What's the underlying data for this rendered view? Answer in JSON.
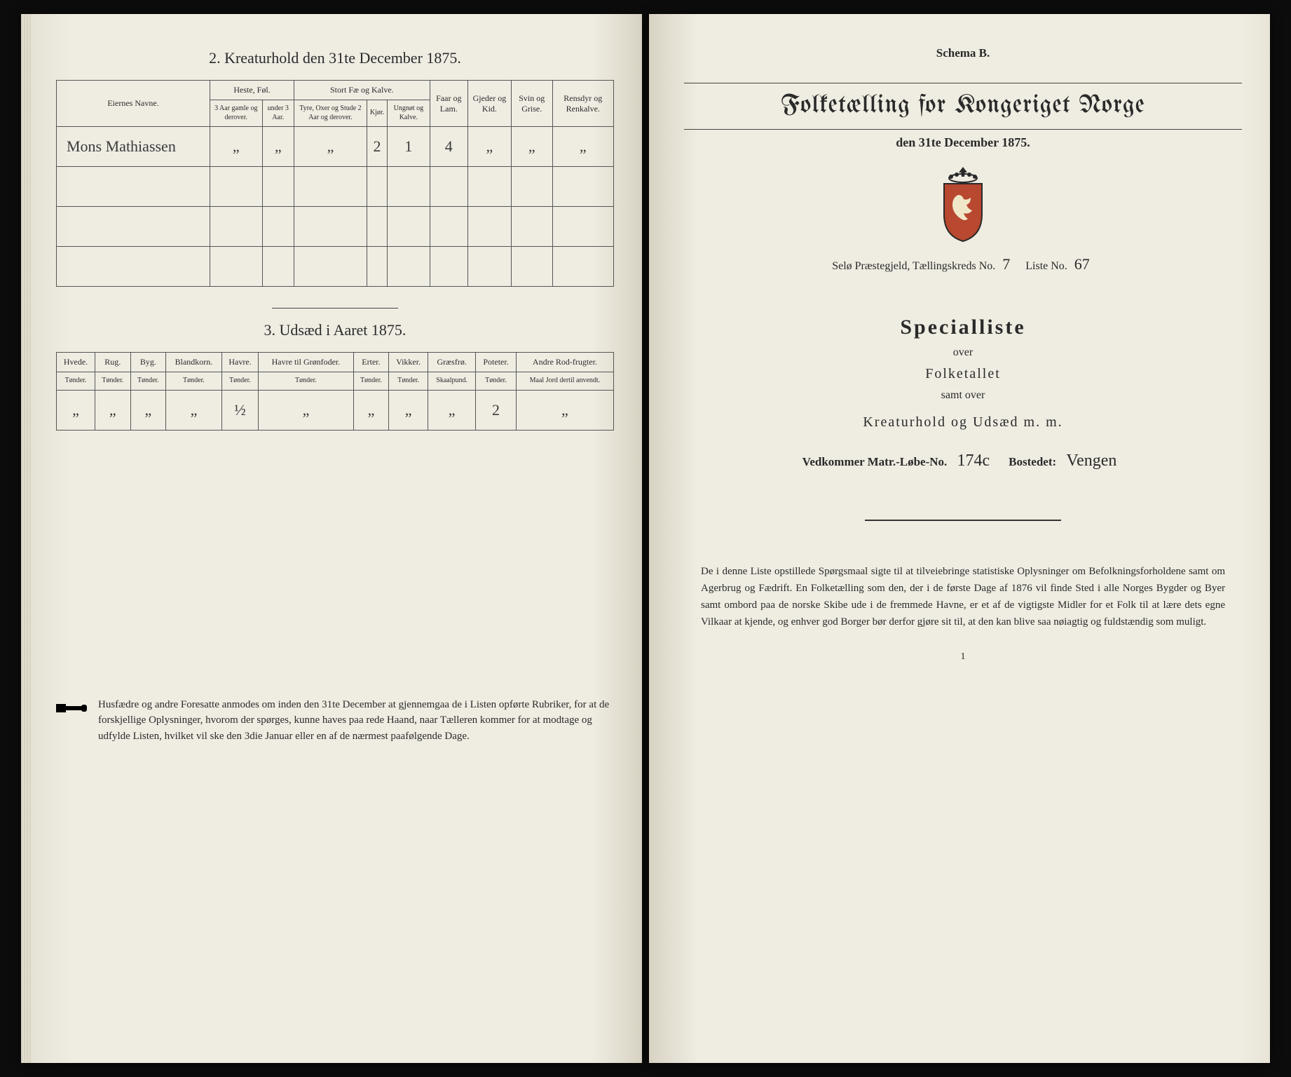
{
  "left": {
    "section2": {
      "title": "2.  Kreaturhold den 31te December 1875.",
      "col_owner": "Eiernes Navne.",
      "group_heste": "Heste, Føl.",
      "group_stort": "Stort Fæ og Kalve.",
      "col_faar": "Faar og Lam.",
      "col_gjeder": "Gjeder og Kid.",
      "col_svin": "Svin og Grise.",
      "col_rensdyr": "Rensdyr og Renkalve.",
      "sub_h1": "3 Aar gamle og derover.",
      "sub_h2": "under 3 Aar.",
      "sub_s1": "Tyre, Oxer og Stude 2 Aar og derover.",
      "sub_s2": "Kjør.",
      "sub_s3": "Ungnøt og Kalve.",
      "rows": [
        {
          "name": "Mons Mathiassen",
          "h1": "„",
          "h2": "„",
          "s1": "„",
          "s2": "2",
          "s3": "1",
          "faar": "4",
          "gjeder": "„",
          "svin": "„",
          "rens": "„"
        },
        {
          "name": "",
          "h1": "",
          "h2": "",
          "s1": "",
          "s2": "",
          "s3": "",
          "faar": "",
          "gjeder": "",
          "svin": "",
          "rens": ""
        },
        {
          "name": "",
          "h1": "",
          "h2": "",
          "s1": "",
          "s2": "",
          "s3": "",
          "faar": "",
          "gjeder": "",
          "svin": "",
          "rens": ""
        },
        {
          "name": "",
          "h1": "",
          "h2": "",
          "s1": "",
          "s2": "",
          "s3": "",
          "faar": "",
          "gjeder": "",
          "svin": "",
          "rens": ""
        }
      ]
    },
    "section3": {
      "title": "3.  Udsæd i Aaret 1875.",
      "cols": [
        {
          "h": "Hvede.",
          "u": "Tønder."
        },
        {
          "h": "Rug.",
          "u": "Tønder."
        },
        {
          "h": "Byg.",
          "u": "Tønder."
        },
        {
          "h": "Blandkorn.",
          "u": "Tønder."
        },
        {
          "h": "Havre.",
          "u": "Tønder."
        },
        {
          "h": "Havre til Grønfoder.",
          "u": "Tønder."
        },
        {
          "h": "Erter.",
          "u": "Tønder."
        },
        {
          "h": "Vikker.",
          "u": "Tønder."
        },
        {
          "h": "Græsfrø.",
          "u": "Skaalpund."
        },
        {
          "h": "Poteter.",
          "u": "Tønder."
        },
        {
          "h": "Andre Rod-frugter.",
          "u": "Maal Jord dertil anvendt."
        }
      ],
      "row": [
        "„",
        "„",
        "„",
        "„",
        "½",
        "„",
        "„",
        "„",
        "„",
        "2",
        "„"
      ]
    },
    "footnote": "Husfædre og andre Foresatte anmodes om inden den 31te December at gjennemgaa de i Listen opførte Rubriker, for at de forskjellige Oplysninger, hvorom der spørges, kunne haves paa rede Haand, naar Tælleren kommer for at modtage og udfylde Listen, hvilket vil ske den 3die Januar eller en af de nærmest paafølgende Dage."
  },
  "right": {
    "schema": "Schema B.",
    "main_title": "Folketælling for Kongeriget Norge",
    "main_date": "den 31te December 1875.",
    "kreds_prefix": "Selø Præstegjeld, Tællingskreds No.",
    "kreds_no": "7",
    "liste_label": "Liste No.",
    "liste_no": "67",
    "special": "Specialliste",
    "over": "over",
    "folket": "Folketallet",
    "samt": "samt over",
    "kreatur": "Kreaturhold og Udsæd m. m.",
    "matr_label": "Vedkommer Matr.-Løbe-No.",
    "matr_no": "174c",
    "bostedet_label": "Bostedet:",
    "bostedet": "Vengen",
    "bottom": "De i denne Liste opstillede Spørgsmaal sigte til at tilveiebringe statistiske Oplysninger om Befolkningsforholdene samt om Agerbrug og Fædrift.  En Folketælling som den, der i de første Dage af 1876 vil finde Sted i alle Norges Bygder og Byer samt ombord paa de norske Skibe ude i de fremmede Havne, er et af de vigtigste Midler for et Folk til at lære dets egne Vilkaar at kjende, og enhver god Borger bør derfor gjøre sit til, at den kan blive saa nøiagtig og fuldstændig som muligt.",
    "tiny": "1"
  }
}
